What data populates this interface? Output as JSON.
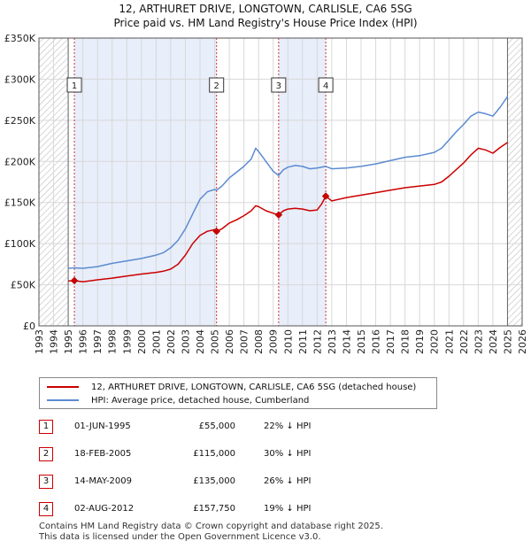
{
  "title_line1": "12, ARTHURET DRIVE, LONGTOWN, CARLISLE, CA6 5SG",
  "title_line2": "Price paid vs. HM Land Registry's House Price Index (HPI)",
  "colors": {
    "price_line": "#cc0000",
    "hpi_line": "#5b8bd0",
    "shade": "#e8eefa",
    "hatch": "#c9c9c9",
    "grid": "#d8d8d8"
  },
  "chart_data": {
    "type": "line",
    "xlim": [
      1993,
      2026
    ],
    "ylim": [
      0,
      350000
    ],
    "x_ticks": [
      1993,
      1994,
      1995,
      1996,
      1997,
      1998,
      1999,
      2000,
      2001,
      2002,
      2003,
      2004,
      2005,
      2006,
      2007,
      2008,
      2009,
      2010,
      2011,
      2012,
      2013,
      2014,
      2015,
      2016,
      2017,
      2018,
      2019,
      2020,
      2021,
      2022,
      2023,
      2024,
      2025,
      2026
    ],
    "y_ticks": [
      {
        "value": 0,
        "label": "£0"
      },
      {
        "value": 50000,
        "label": "£50K"
      },
      {
        "value": 100000,
        "label": "£100K"
      },
      {
        "value": 150000,
        "label": "£150K"
      },
      {
        "value": 200000,
        "label": "£200K"
      },
      {
        "value": 250000,
        "label": "£250K"
      },
      {
        "value": 300000,
        "label": "£300K"
      },
      {
        "value": 350000,
        "label": "£350K"
      }
    ],
    "hatched_ranges": [
      [
        1993,
        1995.0
      ],
      [
        2025.0,
        2026
      ]
    ],
    "shaded_ranges": [
      [
        1995.42,
        2005.13
      ],
      [
        2009.37,
        2012.59
      ]
    ],
    "series": [
      {
        "name": "12, ARTHURET DRIVE, LONGTOWN, CARLISLE, CA6 5SG (detached house)",
        "x": [
          1995.0,
          1995.42,
          1996,
          1997,
          1998,
          1999,
          2000,
          2001,
          2001.5,
          2002,
          2002.5,
          2003,
          2003.5,
          2004,
          2004.5,
          2005.0,
          2005.13,
          2005.5,
          2006,
          2006.5,
          2007,
          2007.5,
          2007.8,
          2008,
          2008.5,
          2009,
          2009.37,
          2009.7,
          2010,
          2010.5,
          2011,
          2011.5,
          2012,
          2012.3,
          2012.59,
          2013,
          2014,
          2015,
          2016,
          2017,
          2018,
          2019,
          2020,
          2020.5,
          2021,
          2021.5,
          2022,
          2022.5,
          2023,
          2023.5,
          2024,
          2024.5,
          2025.0
        ],
        "y": [
          54500,
          55000,
          53500,
          56000,
          58000,
          60500,
          63000,
          65000,
          66500,
          69000,
          75000,
          86000,
          100000,
          110000,
          115000,
          117000,
          115000,
          118000,
          125000,
          129000,
          134000,
          140000,
          146000,
          145000,
          140000,
          137000,
          135000,
          140000,
          142000,
          143000,
          142000,
          140000,
          141000,
          148000,
          157750,
          152000,
          156000,
          159000,
          162000,
          165000,
          168000,
          170000,
          172000,
          175000,
          182000,
          190000,
          198000,
          208000,
          216000,
          214000,
          210000,
          217000,
          223000
        ]
      },
      {
        "name": "HPI: Average price, detached house, Cumberland",
        "x": [
          1995.0,
          1995.42,
          1996,
          1997,
          1998,
          1999,
          2000,
          2001,
          2001.5,
          2002,
          2002.5,
          2003,
          2003.5,
          2004,
          2004.5,
          2005.0,
          2005.13,
          2005.5,
          2006,
          2006.5,
          2007,
          2007.5,
          2007.8,
          2008,
          2008.5,
          2009,
          2009.37,
          2009.7,
          2010,
          2010.5,
          2011,
          2011.5,
          2012,
          2012.3,
          2012.59,
          2013,
          2014,
          2015,
          2016,
          2017,
          2018,
          2019,
          2020,
          2020.5,
          2021,
          2021.5,
          2022,
          2022.5,
          2023,
          2023.5,
          2024,
          2024.5,
          2025.0
        ],
        "y": [
          70000,
          70500,
          70000,
          72000,
          76000,
          79000,
          82000,
          86000,
          89000,
          95000,
          104000,
          118000,
          136000,
          154000,
          163000,
          166000,
          165000,
          170000,
          180000,
          187000,
          194000,
          203000,
          216000,
          212000,
          200000,
          188000,
          183000,
          190000,
          193000,
          195000,
          194000,
          191000,
          192000,
          193000,
          194000,
          191000,
          192000,
          194000,
          197000,
          201000,
          205000,
          207000,
          211000,
          216000,
          226000,
          236000,
          245000,
          255000,
          260000,
          258000,
          255000,
          266000,
          279000
        ]
      }
    ],
    "sale_markers": [
      {
        "label": "1",
        "x": 1995.42,
        "y": 55000
      },
      {
        "label": "2",
        "x": 2005.13,
        "y": 115000
      },
      {
        "label": "3",
        "x": 2009.37,
        "y": 135000
      },
      {
        "label": "4",
        "x": 2012.59,
        "y": 157750
      }
    ]
  },
  "legend": {
    "price_label": "12, ARTHURET DRIVE, LONGTOWN, CARLISLE, CA6 5SG (detached house)",
    "hpi_label": "HPI: Average price, detached house, Cumberland"
  },
  "sales": [
    {
      "num": "1",
      "date": "01-JUN-1995",
      "price": "£55,000",
      "hpi": "22% ↓ HPI"
    },
    {
      "num": "2",
      "date": "18-FEB-2005",
      "price": "£115,000",
      "hpi": "30% ↓ HPI"
    },
    {
      "num": "3",
      "date": "14-MAY-2009",
      "price": "£135,000",
      "hpi": "26% ↓ HPI"
    },
    {
      "num": "4",
      "date": "02-AUG-2012",
      "price": "£157,750",
      "hpi": "19% ↓ HPI"
    }
  ],
  "footer_line1": "Contains HM Land Registry data © Crown copyright and database right 2025.",
  "footer_line2": "This data is licensed under the Open Government Licence v3.0."
}
